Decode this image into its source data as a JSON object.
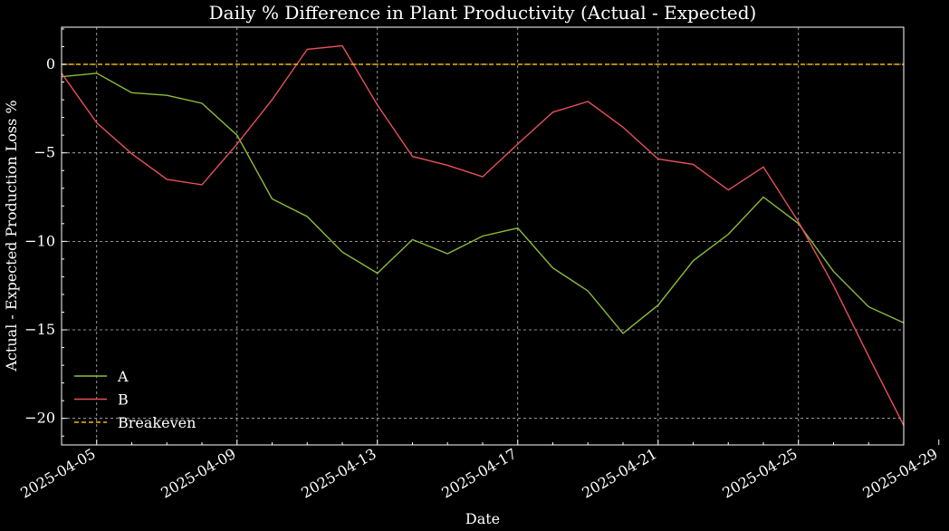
{
  "chart_data": {
    "type": "line",
    "title": "Daily % Difference in Plant Productivity (Actual - Expected)",
    "xlabel": "Date",
    "ylabel": "Actual - Expected Production Loss %",
    "x": [
      "2025-04-04",
      "2025-04-05",
      "2025-04-06",
      "2025-04-07",
      "2025-04-08",
      "2025-04-09",
      "2025-04-10",
      "2025-04-11",
      "2025-04-12",
      "2025-04-13",
      "2025-04-14",
      "2025-04-15",
      "2025-04-16",
      "2025-04-17",
      "2025-04-18",
      "2025-04-19",
      "2025-04-20",
      "2025-04-21",
      "2025-04-22",
      "2025-04-23",
      "2025-04-24",
      "2025-04-25",
      "2025-04-26",
      "2025-04-27",
      "2025-04-28"
    ],
    "x_ticks": [
      "2025-04-05",
      "2025-04-09",
      "2025-04-13",
      "2025-04-17",
      "2025-04-21",
      "2025-04-25",
      "2025-04-29"
    ],
    "xlim": [
      "2025-04-04",
      "2025-04-28"
    ],
    "y_ticks": [
      0,
      -5,
      -10,
      -15,
      -20
    ],
    "ylim": [
      -21.5,
      2.1
    ],
    "grid": true,
    "legend_position": "bottom-left",
    "series": [
      {
        "name": "A",
        "color": "#8dbd3a",
        "style": "solid",
        "values": [
          -0.7,
          -0.5,
          -1.6,
          -1.75,
          -2.2,
          -4.0,
          -7.6,
          -8.6,
          -10.6,
          -11.8,
          -9.9,
          -10.7,
          -9.7,
          -9.25,
          -11.5,
          -12.8,
          -15.2,
          -13.6,
          -11.1,
          -9.6,
          -7.5,
          -9.0,
          -11.7,
          -13.7,
          -14.6
        ]
      },
      {
        "name": "B",
        "color": "#e8505b",
        "style": "solid",
        "values": [
          -0.5,
          -3.3,
          -5.05,
          -6.5,
          -6.8,
          -4.5,
          -2.0,
          0.85,
          1.05,
          -2.3,
          -5.2,
          -5.7,
          -6.35,
          -4.5,
          -2.7,
          -2.1,
          -3.55,
          -5.35,
          -5.65,
          -7.1,
          -5.8,
          -8.9,
          -12.5,
          -16.5,
          -20.4
        ]
      },
      {
        "name": "Breakeven",
        "color": "#f5b800",
        "style": "dashed",
        "values": [
          0,
          0,
          0,
          0,
          0,
          0,
          0,
          0,
          0,
          0,
          0,
          0,
          0,
          0,
          0,
          0,
          0,
          0,
          0,
          0,
          0,
          0,
          0,
          0,
          0
        ]
      }
    ]
  }
}
